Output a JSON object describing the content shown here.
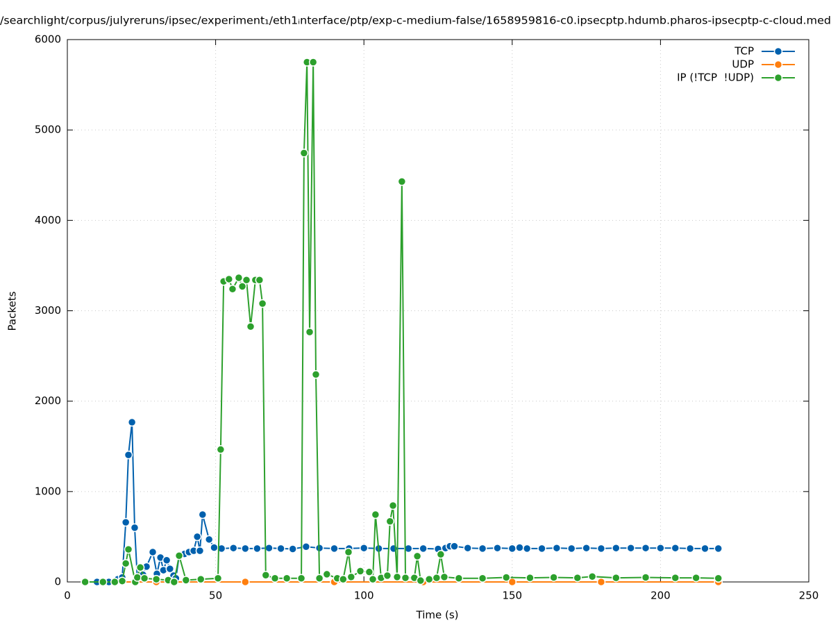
{
  "chart_data": {
    "type": "line",
    "title": "/searchlight/corpus/julyreruns/ipsec/experiment₁/eth1ᵢnterface/ptp/exp-c-medium-false/1658959816-c0.ipsecptp.hdumb.pharos-ipsecptp-c-cloud.med",
    "x_label": "Time (s)",
    "y_label": "Packets",
    "xlim": [
      0,
      250
    ],
    "xticks": [
      0,
      50,
      100,
      150,
      200,
      250
    ],
    "ylim": [
      0,
      6000
    ],
    "yticks": [
      0,
      1000,
      2000,
      3000,
      4000,
      5000,
      6000
    ],
    "grid": true,
    "legend": "top-right",
    "series": [
      {
        "name": "TCP",
        "color": "#0060ad",
        "x": [
          6,
          10,
          14,
          17,
          18.5,
          19.7,
          20.6,
          21.8,
          22.7,
          23.6,
          25.5,
          26.7,
          28.8,
          30.2,
          31.4,
          32.4,
          33.5,
          34.6,
          35.8,
          36.6,
          37.7,
          39.5,
          41,
          42.6,
          43.8,
          44.7,
          45.6,
          47.8,
          49.5,
          52,
          56,
          60,
          64,
          68,
          72,
          76,
          80.5,
          85,
          90,
          95,
          100,
          105,
          110,
          115,
          120,
          125,
          127.5,
          129,
          130.5,
          135,
          140,
          145,
          150,
          152.5,
          155,
          160,
          165,
          170,
          175,
          180,
          185,
          190,
          195,
          200,
          205,
          210,
          215,
          219.5
        ],
        "values": [
          0,
          0,
          0,
          30,
          50,
          660,
          1405,
          1767,
          600,
          40,
          80,
          170,
          330,
          90,
          270,
          130,
          240,
          145,
          70,
          40,
          290,
          310,
          330,
          345,
          500,
          345,
          745,
          470,
          380,
          370,
          375,
          370,
          370,
          375,
          370,
          365,
          390,
          375,
          370,
          370,
          375,
          370,
          370,
          370,
          370,
          365,
          375,
          395,
          395,
          375,
          370,
          375,
          370,
          380,
          370,
          370,
          375,
          370,
          375,
          370,
          375,
          375,
          375,
          375,
          375,
          370,
          370,
          370
        ]
      },
      {
        "name": "UDP",
        "color": "#ff7f0e",
        "x": [
          6,
          30,
          60,
          90,
          120,
          150,
          180,
          219.5
        ],
        "values": [
          0,
          0,
          0,
          0,
          0,
          0,
          0,
          0
        ]
      },
      {
        "name": "IP (!TCP  !UDP)",
        "color": "#2ca02c",
        "x": [
          6,
          12,
          16,
          18.5,
          19.7,
          20.6,
          22.9,
          23.6,
          24.6,
          26,
          30,
          34,
          36,
          37.7,
          40,
          45,
          50.8,
          51.7,
          52.7,
          54.5,
          55.7,
          57.8,
          59,
          60.4,
          61.8,
          63.4,
          64.8,
          65.8,
          66.9,
          70,
          74,
          78.9,
          79.8,
          80.8,
          81.7,
          82.9,
          83.8,
          85,
          87.5,
          91,
          93,
          94.8,
          95.7,
          98.8,
          101.8,
          103,
          103.9,
          105.8,
          107.9,
          108.8,
          109.8,
          111.2,
          112.8,
          114,
          117,
          118,
          119.1,
          122,
          124.5,
          125.9,
          127.1,
          132,
          140,
          148,
          156,
          164,
          172,
          177,
          185,
          195,
          205,
          212,
          219.5
        ],
        "values": [
          0,
          0,
          0,
          10,
          205,
          360,
          0,
          50,
          160,
          40,
          30,
          20,
          0,
          290,
          20,
          30,
          40,
          1465,
          3325,
          3350,
          3240,
          3365,
          3270,
          3340,
          2825,
          3340,
          3340,
          3080,
          75,
          40,
          40,
          40,
          4745,
          5750,
          2765,
          5750,
          2295,
          40,
          85,
          40,
          30,
          330,
          55,
          120,
          110,
          30,
          745,
          45,
          70,
          670,
          845,
          55,
          4430,
          45,
          45,
          285,
          15,
          30,
          45,
          305,
          55,
          40,
          40,
          50,
          45,
          50,
          45,
          60,
          45,
          50,
          45,
          45,
          40
        ]
      }
    ]
  }
}
